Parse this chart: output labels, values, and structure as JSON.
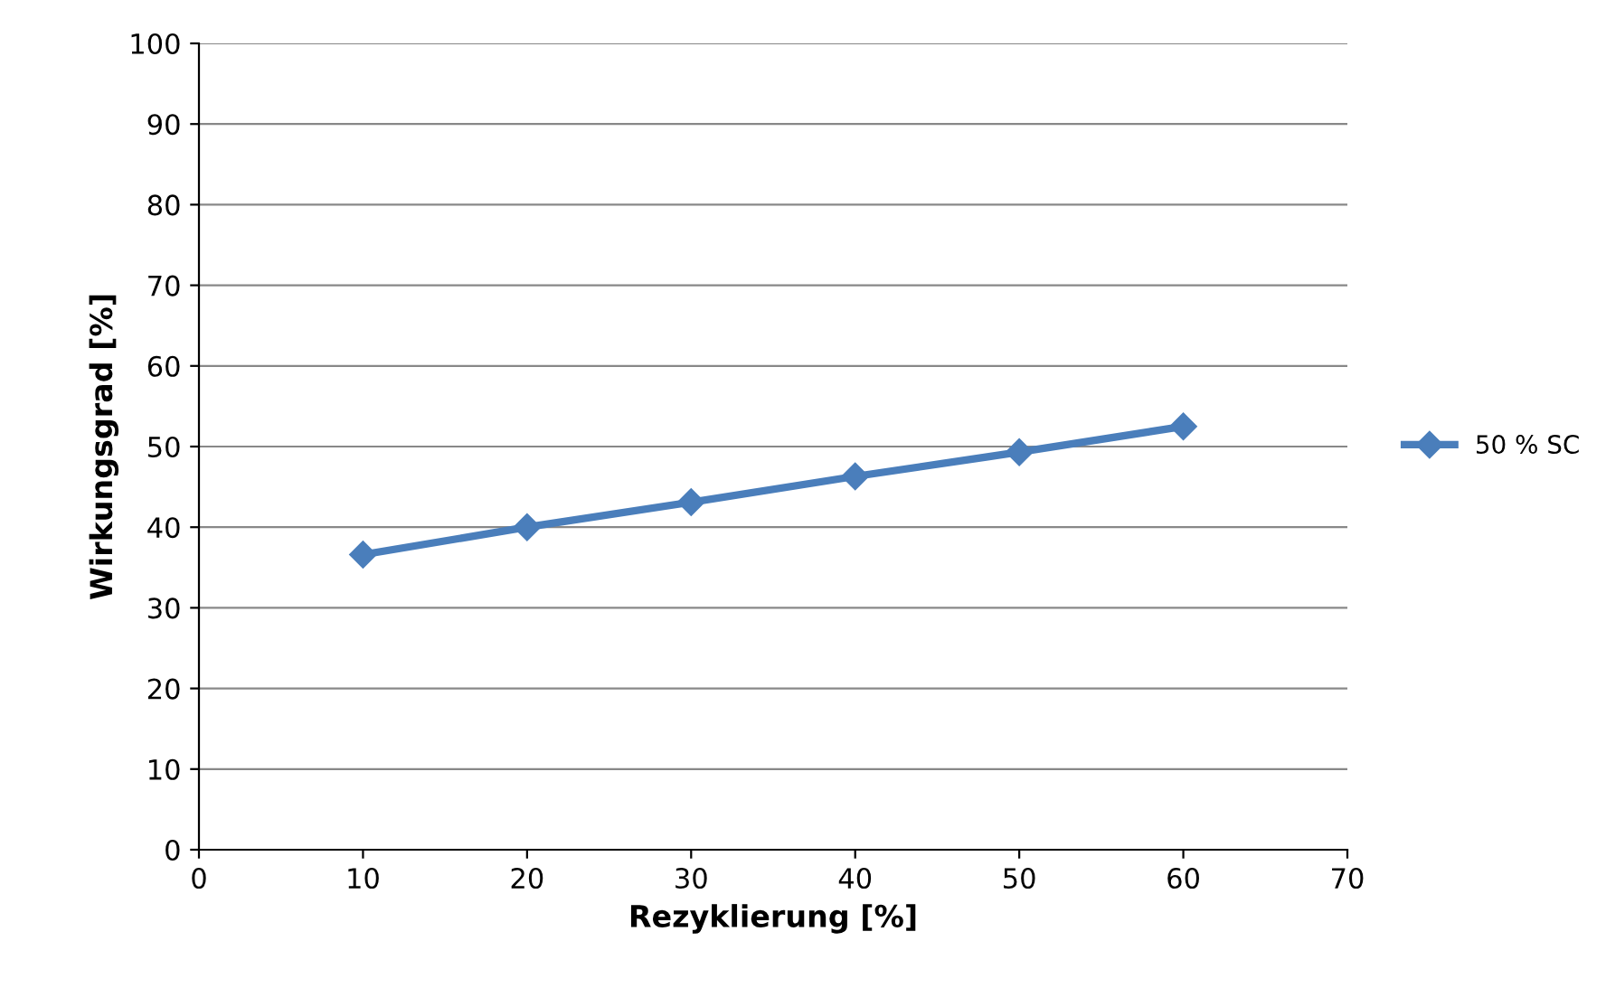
{
  "chart_data": {
    "type": "line",
    "xlabel": "Rezyklierung [%]",
    "ylabel": "Wirkungsgrad [%]",
    "x": [
      10,
      20,
      30,
      40,
      50,
      60
    ],
    "series": [
      {
        "name": "50 % SC",
        "color": "#4a7ebb",
        "values": [
          36.6,
          40.0,
          43.1,
          46.3,
          49.3,
          52.5
        ]
      }
    ],
    "xlim": [
      0,
      70
    ],
    "xticks": [
      0,
      10,
      20,
      30,
      40,
      50,
      60,
      70
    ],
    "ylim": [
      0,
      100
    ],
    "yticks": [
      0,
      10,
      20,
      30,
      40,
      50,
      60,
      70,
      80,
      90,
      100
    ],
    "grid": "y",
    "legend": "right",
    "marker": "diamond",
    "line_style": "solid"
  }
}
